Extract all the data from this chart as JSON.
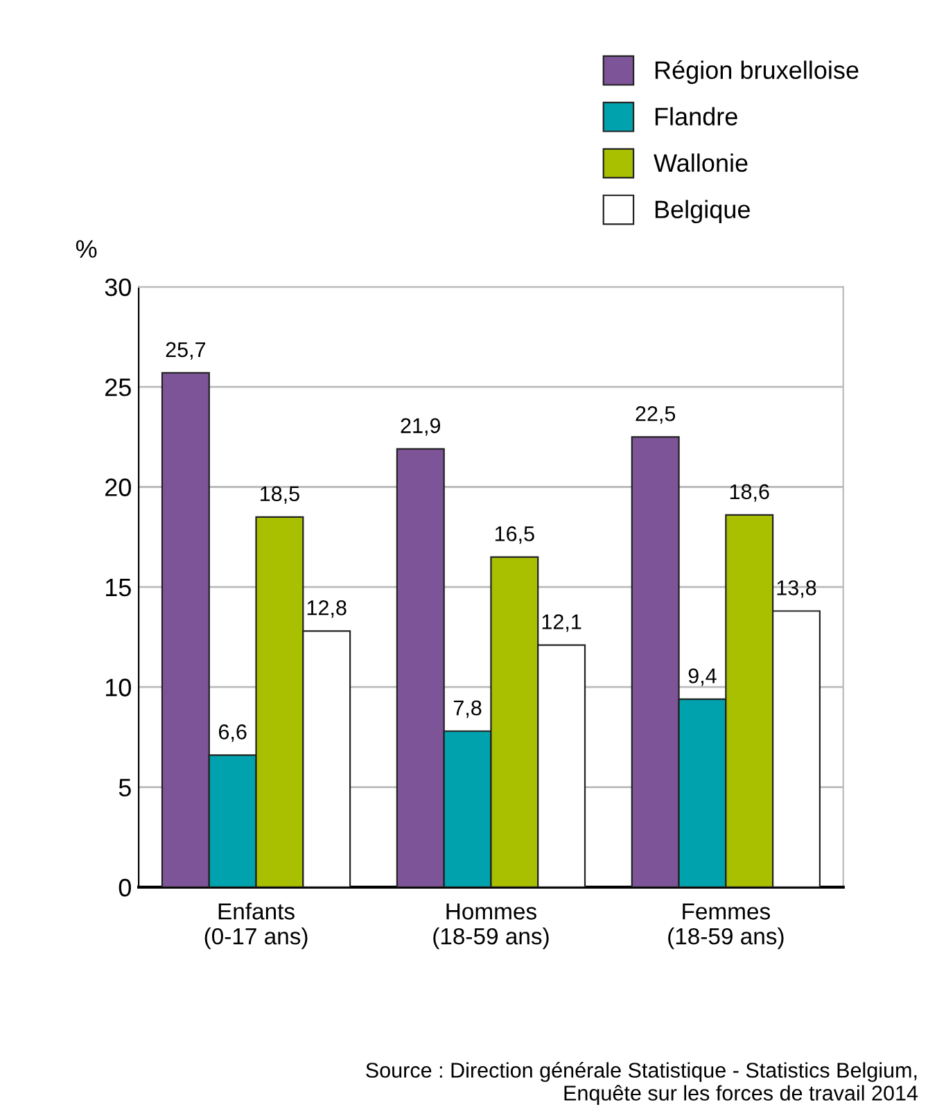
{
  "chart_data": {
    "type": "bar",
    "ylabel": "%",
    "categories": [
      "Enfants\n(0-17 ans)",
      "Hommes\n(18-59 ans)",
      "Femmes\n(18-59 ans)"
    ],
    "series": [
      {
        "name": "Région bruxelloise",
        "color": "#7e5499",
        "values": [
          25.7,
          21.9,
          22.5
        ],
        "value_labels": [
          "25,7",
          "21,9",
          "22,5"
        ]
      },
      {
        "name": "Flandre",
        "color": "#00a3ad",
        "values": [
          6.6,
          7.8,
          9.4
        ],
        "value_labels": [
          "6,6",
          "7,8",
          "9,4"
        ]
      },
      {
        "name": "Wallonie",
        "color": "#a9c000",
        "values": [
          18.5,
          16.5,
          18.6
        ],
        "value_labels": [
          "18,5",
          "16,5",
          "18,6"
        ]
      },
      {
        "name": "Belgique",
        "color": "#ffffff",
        "values": [
          12.8,
          12.1,
          13.8
        ],
        "value_labels": [
          "12,8",
          "12,1",
          "13,8"
        ]
      }
    ],
    "ylim": [
      0,
      30
    ],
    "yticks": [
      0,
      5,
      10,
      15,
      20,
      25,
      30
    ],
    "grid": "y",
    "legend": "top right",
    "annotations": [
      "Source : Direction générale Statistique - Statistics Belgium,\nEnquête sur les forces de travail 2014"
    ]
  }
}
